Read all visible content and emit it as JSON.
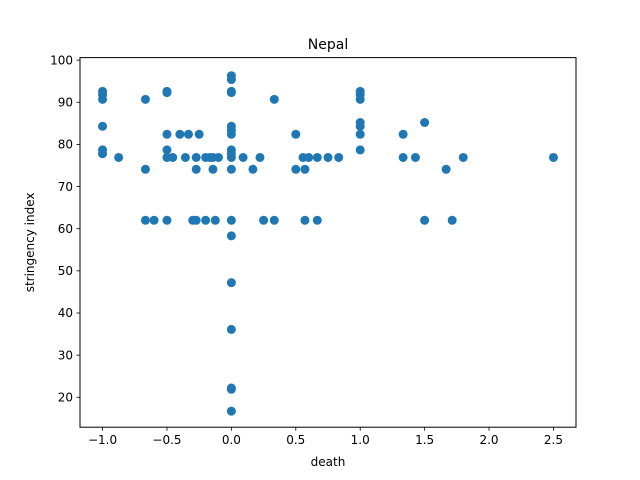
{
  "chart_data": {
    "type": "scatter",
    "title": "Nepal",
    "xlabel": "death",
    "ylabel": "stringency index",
    "xlim": [
      -1.175,
      2.675
    ],
    "ylim": [
      12.9,
      100.6
    ],
    "xticks": [
      -1.0,
      -0.5,
      0.0,
      0.5,
      1.0,
      1.5,
      2.0,
      2.5
    ],
    "xtick_labels": [
      "−1.0",
      "−0.5",
      "0.0",
      "0.5",
      "1.0",
      "1.5",
      "2.0",
      "2.5"
    ],
    "yticks": [
      20,
      30,
      40,
      50,
      60,
      70,
      80,
      90,
      100
    ],
    "ytick_labels": [
      "20",
      "30",
      "40",
      "50",
      "60",
      "70",
      "80",
      "90",
      "100"
    ],
    "grid": false,
    "marker_color": "#1f77b4",
    "points": [
      {
        "x": -1.0,
        "y": 92.6
      },
      {
        "x": -1.0,
        "y": 91.8
      },
      {
        "x": -1.0,
        "y": 90.7
      },
      {
        "x": -1.0,
        "y": 84.3
      },
      {
        "x": -1.0,
        "y": 78.7
      },
      {
        "x": -1.0,
        "y": 77.8
      },
      {
        "x": -0.875,
        "y": 76.9
      },
      {
        "x": -0.667,
        "y": 90.7
      },
      {
        "x": -0.667,
        "y": 74.1
      },
      {
        "x": -0.667,
        "y": 62.0
      },
      {
        "x": -0.6,
        "y": 62.0
      },
      {
        "x": -0.5,
        "y": 92.6
      },
      {
        "x": -0.5,
        "y": 92.3
      },
      {
        "x": -0.5,
        "y": 82.4
      },
      {
        "x": -0.5,
        "y": 78.7
      },
      {
        "x": -0.5,
        "y": 76.9
      },
      {
        "x": -0.5,
        "y": 62.0
      },
      {
        "x": -0.455,
        "y": 76.9
      },
      {
        "x": -0.4,
        "y": 82.4
      },
      {
        "x": -0.357,
        "y": 76.9
      },
      {
        "x": -0.333,
        "y": 82.4
      },
      {
        "x": -0.3,
        "y": 62.0
      },
      {
        "x": -0.273,
        "y": 76.9
      },
      {
        "x": -0.273,
        "y": 74.1
      },
      {
        "x": -0.273,
        "y": 62.0
      },
      {
        "x": -0.25,
        "y": 82.4
      },
      {
        "x": -0.2,
        "y": 76.9
      },
      {
        "x": -0.2,
        "y": 62.0
      },
      {
        "x": -0.167,
        "y": 76.9
      },
      {
        "x": -0.143,
        "y": 76.9
      },
      {
        "x": -0.143,
        "y": 74.1
      },
      {
        "x": -0.125,
        "y": 62.0
      },
      {
        "x": -0.1,
        "y": 76.9
      },
      {
        "x": 0.0,
        "y": 96.3
      },
      {
        "x": 0.0,
        "y": 95.4
      },
      {
        "x": 0.0,
        "y": 92.6
      },
      {
        "x": 0.0,
        "y": 92.3
      },
      {
        "x": 0.0,
        "y": 84.3
      },
      {
        "x": 0.0,
        "y": 83.3
      },
      {
        "x": 0.0,
        "y": 82.4
      },
      {
        "x": 0.0,
        "y": 78.7
      },
      {
        "x": 0.0,
        "y": 77.8
      },
      {
        "x": 0.0,
        "y": 76.9
      },
      {
        "x": 0.0,
        "y": 74.1
      },
      {
        "x": 0.0,
        "y": 62.0
      },
      {
        "x": 0.0,
        "y": 58.3
      },
      {
        "x": 0.0,
        "y": 47.2
      },
      {
        "x": 0.0,
        "y": 36.1
      },
      {
        "x": 0.0,
        "y": 22.2
      },
      {
        "x": 0.0,
        "y": 21.9
      },
      {
        "x": 0.0,
        "y": 16.7
      },
      {
        "x": 0.091,
        "y": 76.9
      },
      {
        "x": 0.167,
        "y": 74.1
      },
      {
        "x": 0.222,
        "y": 76.9
      },
      {
        "x": 0.25,
        "y": 62.0
      },
      {
        "x": 0.333,
        "y": 90.7
      },
      {
        "x": 0.333,
        "y": 62.0
      },
      {
        "x": 0.5,
        "y": 82.4
      },
      {
        "x": 0.5,
        "y": 74.1
      },
      {
        "x": 0.556,
        "y": 76.9
      },
      {
        "x": 0.571,
        "y": 74.1
      },
      {
        "x": 0.571,
        "y": 62.0
      },
      {
        "x": 0.6,
        "y": 76.9
      },
      {
        "x": 0.667,
        "y": 76.9
      },
      {
        "x": 0.667,
        "y": 62.0
      },
      {
        "x": 0.75,
        "y": 76.9
      },
      {
        "x": 0.833,
        "y": 76.9
      },
      {
        "x": 1.0,
        "y": 92.6
      },
      {
        "x": 1.0,
        "y": 91.8
      },
      {
        "x": 1.0,
        "y": 90.7
      },
      {
        "x": 1.0,
        "y": 85.2
      },
      {
        "x": 1.0,
        "y": 84.3
      },
      {
        "x": 1.0,
        "y": 82.4
      },
      {
        "x": 1.0,
        "y": 78.7
      },
      {
        "x": 1.333,
        "y": 82.4
      },
      {
        "x": 1.333,
        "y": 76.9
      },
      {
        "x": 1.429,
        "y": 76.9
      },
      {
        "x": 1.5,
        "y": 85.2
      },
      {
        "x": 1.5,
        "y": 62.0
      },
      {
        "x": 1.667,
        "y": 74.1
      },
      {
        "x": 1.714,
        "y": 62.0
      },
      {
        "x": 1.8,
        "y": 76.9
      },
      {
        "x": 2.5,
        "y": 76.9
      }
    ]
  }
}
